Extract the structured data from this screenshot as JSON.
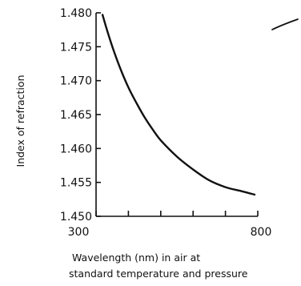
{
  "chart_data": {
    "type": "line",
    "title": "",
    "xlabel_lines": [
      "Wavelength (nm) in air at",
      "standard temperature and pressure"
    ],
    "ylabel": "Index of refraction",
    "xlim": [
      300,
      800
    ],
    "ylim": [
      1.45,
      1.48
    ],
    "x_ticks": [
      300,
      400,
      500,
      600,
      700,
      800
    ],
    "x_tick_labels": [
      "300",
      "800"
    ],
    "y_ticks": [
      1.45,
      1.455,
      1.46,
      1.465,
      1.47,
      1.475,
      1.48
    ],
    "y_tick_labels": [
      "1.450",
      "1.455",
      "1.460",
      "1.465",
      "1.470",
      "1.475",
      "1.480"
    ],
    "grid": false,
    "series": [
      {
        "x": [
          320,
          340,
          360,
          380,
          400,
          425,
          450,
          475,
          500,
          550,
          600,
          650,
          700,
          750,
          790
        ],
        "y": [
          1.4797,
          1.4765,
          1.4737,
          1.4712,
          1.469,
          1.4667,
          1.4646,
          1.4628,
          1.4612,
          1.4588,
          1.4569,
          1.4553,
          1.4543,
          1.4537,
          1.4532
        ]
      }
    ]
  }
}
